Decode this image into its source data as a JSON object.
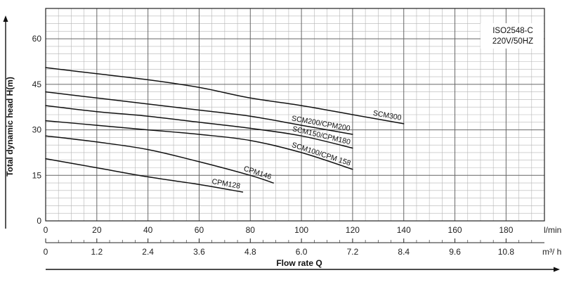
{
  "chart_data": {
    "type": "line",
    "title": "",
    "xlabel": "Flow rate Q",
    "ylabel": "Total dynamic head H(m)",
    "x_unit_primary": "l/min",
    "x_unit_secondary": "m³/ h",
    "xlim": [
      0,
      195
    ],
    "ylim": [
      0,
      70
    ],
    "grid": true,
    "y_ticks": [
      "0",
      "15",
      "30",
      "45",
      "60"
    ],
    "x_ticks_primary": [
      "0",
      "20",
      "40",
      "60",
      "80",
      "100",
      "120",
      "140",
      "160",
      "180"
    ],
    "x_ticks_secondary": [
      "0",
      "1.2",
      "2.4",
      "3.6",
      "4.8",
      "6.0",
      "7.2",
      "8.4",
      "9.6",
      "10.8"
    ],
    "annotation": [
      "ISO2548-C",
      "220V/50HZ"
    ],
    "series": [
      {
        "name": "SCM300",
        "x": [
          0,
          20,
          40,
          60,
          80,
          100,
          120,
          140
        ],
        "y": [
          50.5,
          48.5,
          46.5,
          44,
          40.5,
          38,
          35,
          32
        ]
      },
      {
        "name": "SCM200/CPM200",
        "x": [
          0,
          20,
          40,
          60,
          80,
          100,
          120
        ],
        "y": [
          42.5,
          40.5,
          38.5,
          36.5,
          34.5,
          31.5,
          28.5
        ]
      },
      {
        "name": "SCM150/CPM180",
        "x": [
          0,
          20,
          40,
          60,
          80,
          100,
          120
        ],
        "y": [
          38,
          36,
          34.5,
          32.5,
          30.5,
          28,
          24
        ]
      },
      {
        "name": "SCM100/CPM  158",
        "x": [
          0,
          20,
          40,
          60,
          80,
          100,
          120
        ],
        "y": [
          33,
          31.5,
          30,
          28.5,
          26.5,
          22.5,
          17
        ]
      },
      {
        "name": "CPM146",
        "x": [
          0,
          20,
          40,
          60,
          80,
          89
        ],
        "y": [
          28,
          26,
          23.5,
          19.5,
          15,
          12.5
        ]
      },
      {
        "name": "CPM128",
        "x": [
          0,
          20,
          40,
          60,
          77
        ],
        "y": [
          20.5,
          17.5,
          14.5,
          12,
          9.5
        ]
      }
    ]
  }
}
